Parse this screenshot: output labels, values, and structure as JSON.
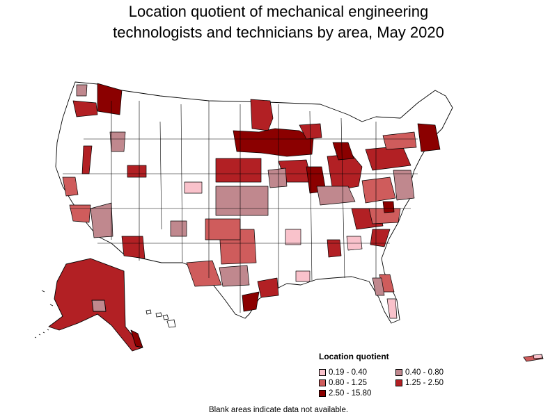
{
  "title": {
    "line1": "Location quotient of mechanical engineering",
    "line2": "technologists and technicians by area, May 2020"
  },
  "legend": {
    "title": "Location quotient",
    "items": [
      {
        "label": "0.19 - 0.40",
        "color": "#f9c2cb"
      },
      {
        "label": "0.40 - 0.80",
        "color": "#c0888e"
      },
      {
        "label": "0.80 - 1.25",
        "color": "#cf5c5c"
      },
      {
        "label": "1.25 - 2.50",
        "color": "#b22024"
      },
      {
        "label": "2.50 - 15.80",
        "color": "#8b0000"
      }
    ]
  },
  "footnote": "Blank areas indicate data not available.",
  "colors": {
    "border": "#000000",
    "no_data": "#ffffff"
  }
}
